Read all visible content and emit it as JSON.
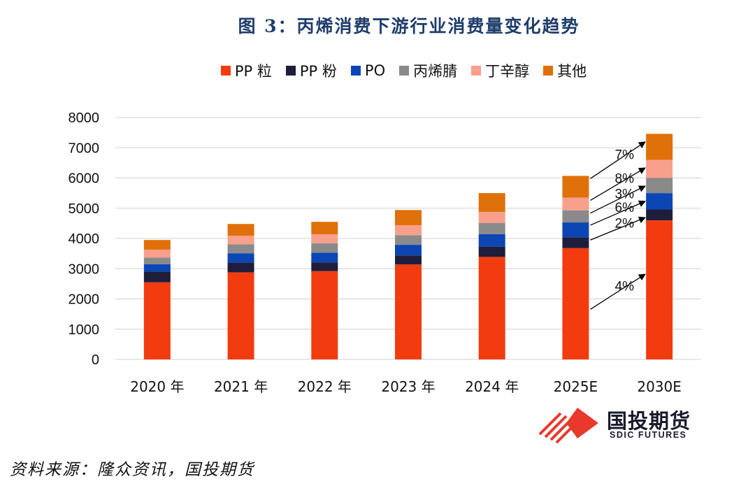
{
  "chart_data": {
    "type": "bar",
    "stacked": true,
    "title": "图 3：丙烯消费下游行业消费量变化趋势",
    "categories": [
      "2020 年",
      "2021 年",
      "2022 年",
      "2023 年",
      "2024 年",
      "2025E",
      "2030E"
    ],
    "ylim": [
      0,
      8000
    ],
    "yticks": [
      0,
      1000,
      2000,
      3000,
      4000,
      5000,
      6000,
      7000,
      8000
    ],
    "grid": true,
    "legend_position": "top-center",
    "series": [
      {
        "name": "PP 粒",
        "color": "#f23c10",
        "values": [
          2550,
          2880,
          2920,
          3140,
          3390,
          3680,
          4600
        ]
      },
      {
        "name": "PP 粉",
        "color": "#1e1e3c",
        "values": [
          350,
          320,
          290,
          300,
          340,
          360,
          360
        ]
      },
      {
        "name": "PO",
        "color": "#0c46b4",
        "values": [
          250,
          310,
          320,
          350,
          410,
          490,
          540
        ]
      },
      {
        "name": "丙烯腈",
        "color": "#8a8a8a",
        "values": [
          220,
          300,
          310,
          320,
          370,
          400,
          500
        ]
      },
      {
        "name": "丁辛醇",
        "color": "#f8a08c",
        "values": [
          260,
          280,
          300,
          330,
          370,
          420,
          600
        ]
      },
      {
        "name": "其他",
        "color": "#e0700a",
        "values": [
          320,
          390,
          410,
          500,
          620,
          720,
          860
        ]
      }
    ],
    "annotations": [
      "4%",
      "2%",
      "6%",
      "3%",
      "8%",
      "7%"
    ]
  },
  "source": "资料来源：隆众资讯，国投期货",
  "logo": {
    "cn": "国投期货",
    "en": "SDIC FUTURES"
  }
}
